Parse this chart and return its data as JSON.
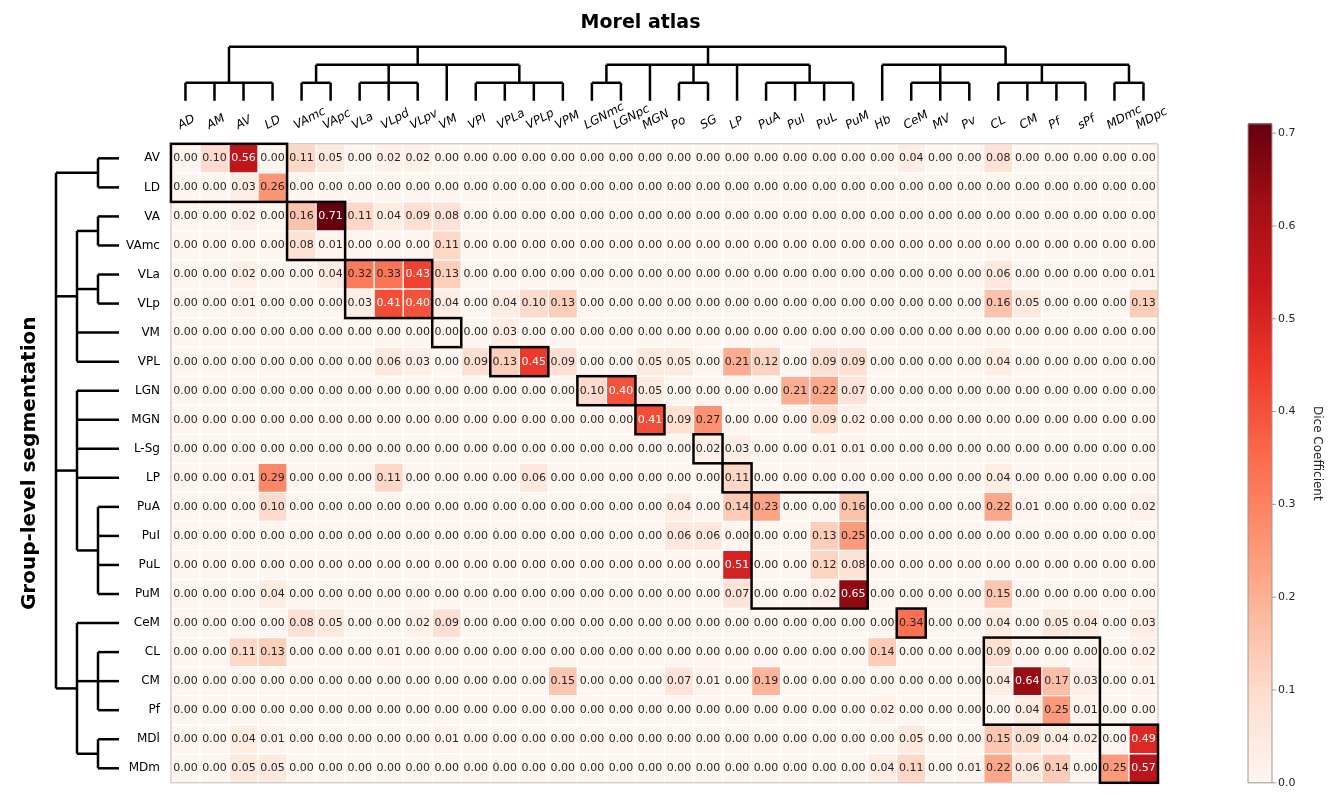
{
  "chart_data": {
    "type": "heatmap",
    "xlabel": "Morel atlas",
    "ylabel": "Group-level segmentation",
    "clabel": "Dice Coefficient",
    "categories": [
      "AD",
      "AM",
      "AV",
      "LD",
      "VAmc",
      "VApc",
      "VLa",
      "VLpd",
      "VLpv",
      "VM",
      "VPI",
      "VPLa",
      "VPLp",
      "VPM",
      "LGNmc",
      "LGNpc",
      "MGN",
      "Po",
      "SG",
      "LP",
      "PuA",
      "PuI",
      "PuL",
      "PuM",
      "Hb",
      "CeM",
      "MV",
      "Pv",
      "CL",
      "CM",
      "Pf",
      "sPf",
      "MDmc",
      "MDpc"
    ],
    "y_categories": [
      "AV",
      "LD",
      "VA",
      "VAmc",
      "VLa",
      "VLp",
      "VM",
      "VPL",
      "LGN",
      "MGN",
      "L-Sg",
      "LP",
      "PuA",
      "PuI",
      "PuL",
      "PuM",
      "CeM",
      "CL",
      "CM",
      "Pf",
      "MDl",
      "MDm"
    ],
    "cells": [
      [
        0,
        0.1,
        0.56,
        0,
        0.11,
        0.05,
        0,
        0.02,
        0.02,
        0,
        0,
        0,
        0,
        0,
        0,
        0,
        0,
        0,
        0,
        0,
        0,
        0,
        0,
        0,
        0,
        0.04,
        0,
        0,
        0.08,
        0,
        0,
        0,
        0,
        0
      ],
      [
        0,
        0,
        0.03,
        0.26,
        0,
        0,
        0,
        0,
        0,
        0,
        0,
        0,
        0,
        0,
        0,
        0,
        0,
        0,
        0,
        0,
        0,
        0,
        0,
        0,
        0,
        0,
        0,
        0,
        0,
        0,
        0,
        0,
        0,
        0
      ],
      [
        0,
        0,
        0.02,
        0,
        0.16,
        0.71,
        0.11,
        0.04,
        0.09,
        0.08,
        0,
        0,
        0,
        0,
        0,
        0,
        0,
        0,
        0,
        0,
        0,
        0,
        0,
        0,
        0,
        0,
        0,
        0,
        0,
        0,
        0,
        0,
        0,
        0
      ],
      [
        0,
        0,
        0,
        0,
        0.08,
        0.01,
        0,
        0,
        0,
        0.11,
        0,
        0,
        0,
        0,
        0,
        0,
        0,
        0,
        0,
        0,
        0,
        0,
        0,
        0,
        0,
        0,
        0,
        0,
        0,
        0,
        0,
        0,
        0,
        0
      ],
      [
        0,
        0,
        0.02,
        0,
        0,
        0.04,
        0.32,
        0.33,
        0.43,
        0.13,
        0,
        0,
        0,
        0,
        0,
        0,
        0,
        0,
        0,
        0,
        0,
        0,
        0,
        0,
        0,
        0,
        0,
        0,
        0.06,
        0,
        0,
        0,
        0,
        0.01
      ],
      [
        0,
        0,
        0.01,
        0,
        0,
        0,
        0.03,
        0.41,
        0.4,
        0.04,
        0,
        0.04,
        0.1,
        0.13,
        0,
        0,
        0,
        0,
        0,
        0,
        0,
        0,
        0,
        0,
        0,
        0,
        0,
        0,
        0.16,
        0.05,
        0,
        0,
        0,
        0.13
      ],
      [
        0,
        0,
        0,
        0,
        0,
        0,
        0,
        0,
        0,
        0,
        0,
        0.03,
        0,
        0,
        0,
        0,
        0,
        0,
        0,
        0,
        0,
        0,
        0,
        0,
        0,
        0,
        0,
        0,
        0,
        0,
        0,
        0,
        0,
        0
      ],
      [
        0,
        0,
        0,
        0,
        0,
        0,
        0,
        0.06,
        0.03,
        0,
        0.09,
        0.13,
        0.45,
        0.09,
        0,
        0,
        0.05,
        0.05,
        0,
        0.21,
        0.12,
        0,
        0.09,
        0.09,
        0,
        0,
        0,
        0,
        0.04,
        0,
        0,
        0,
        0,
        0
      ],
      [
        0,
        0,
        0,
        0,
        0,
        0,
        0,
        0,
        0,
        0,
        0,
        0,
        0,
        0,
        0.1,
        0.4,
        0.05,
        0,
        0,
        0,
        0,
        0.21,
        0.22,
        0.07,
        0,
        0,
        0,
        0,
        0,
        0,
        0,
        0,
        0,
        0
      ],
      [
        0,
        0,
        0,
        0,
        0,
        0,
        0,
        0,
        0,
        0,
        0,
        0,
        0,
        0,
        0,
        0,
        0.41,
        0.09,
        0.27,
        0,
        0,
        0,
        0.09,
        0.02,
        0,
        0,
        0,
        0,
        0,
        0,
        0,
        0,
        0,
        0
      ],
      [
        0,
        0,
        0,
        0,
        0,
        0,
        0,
        0,
        0,
        0,
        0,
        0,
        0,
        0,
        0,
        0,
        0,
        0,
        0.02,
        0.03,
        0,
        0,
        0.01,
        0.01,
        0,
        0,
        0,
        0,
        0,
        0,
        0,
        0,
        0,
        0
      ],
      [
        0,
        0,
        0.01,
        0.29,
        0,
        0,
        0,
        0.11,
        0,
        0,
        0,
        0,
        0.06,
        0,
        0,
        0,
        0,
        0,
        0,
        0.11,
        0,
        0,
        0,
        0,
        0,
        0,
        0,
        0,
        0.04,
        0,
        0,
        0,
        0,
        0
      ],
      [
        0,
        0,
        0,
        0.1,
        0,
        0,
        0,
        0,
        0,
        0,
        0,
        0,
        0,
        0,
        0,
        0,
        0,
        0.04,
        0,
        0.14,
        0.23,
        0,
        0,
        0.16,
        0,
        0,
        0,
        0,
        0.22,
        0.01,
        0,
        0,
        0,
        0.02
      ],
      [
        0,
        0,
        0,
        0,
        0,
        0,
        0,
        0,
        0,
        0,
        0,
        0,
        0,
        0,
        0,
        0,
        0,
        0.06,
        0.06,
        0,
        0,
        0,
        0.13,
        0.25,
        0,
        0,
        0,
        0,
        0,
        0,
        0,
        0,
        0,
        0
      ],
      [
        0,
        0,
        0,
        0,
        0,
        0,
        0,
        0,
        0,
        0,
        0,
        0,
        0,
        0,
        0,
        0,
        0,
        0,
        0,
        0.51,
        0,
        0,
        0.12,
        0.08,
        0,
        0,
        0,
        0,
        0,
        0,
        0,
        0,
        0,
        0
      ],
      [
        0,
        0,
        0,
        0.04,
        0,
        0,
        0,
        0,
        0,
        0,
        0,
        0,
        0,
        0,
        0,
        0,
        0,
        0,
        0,
        0.07,
        0,
        0,
        0.02,
        0.65,
        0,
        0,
        0,
        0,
        0.15,
        0,
        0,
        0,
        0,
        0
      ],
      [
        0,
        0,
        0,
        0,
        0.08,
        0.05,
        0,
        0,
        0.02,
        0.09,
        0,
        0,
        0,
        0,
        0,
        0,
        0,
        0,
        0,
        0,
        0,
        0,
        0,
        0,
        0,
        0.34,
        0,
        0,
        0.04,
        0,
        0.05,
        0.04,
        0,
        0.03
      ],
      [
        0,
        0,
        0.11,
        0.13,
        0,
        0,
        0,
        0.01,
        0,
        0,
        0,
        0,
        0,
        0,
        0,
        0,
        0,
        0,
        0,
        0,
        0,
        0,
        0,
        0,
        0.14,
        0,
        0,
        0,
        0.09,
        0,
        0,
        0,
        0,
        0.02
      ],
      [
        0,
        0,
        0,
        0,
        0,
        0,
        0,
        0,
        0,
        0,
        0,
        0,
        0,
        0.15,
        0,
        0,
        0,
        0.07,
        0.01,
        0,
        0.19,
        0,
        0,
        0,
        0,
        0,
        0,
        0,
        0.04,
        0.64,
        0.17,
        0.03,
        0,
        0.01
      ],
      [
        0,
        0,
        0,
        0,
        0,
        0,
        0,
        0,
        0,
        0,
        0,
        0,
        0,
        0,
        0,
        0,
        0,
        0,
        0,
        0,
        0,
        0,
        0,
        0,
        0.02,
        0,
        0,
        0,
        0,
        0.04,
        0.25,
        0.01,
        0,
        0
      ],
      [
        0,
        0,
        0.04,
        0.01,
        0,
        0,
        0,
        0,
        0,
        0.01,
        0,
        0,
        0,
        0,
        0,
        0,
        0,
        0,
        0,
        0,
        0,
        0,
        0,
        0,
        0,
        0.05,
        0,
        0,
        0.15,
        0.09,
        0.04,
        0.02,
        0,
        0.49
      ],
      [
        0,
        0,
        0.05,
        0.05,
        0,
        0,
        0,
        0,
        0,
        0,
        0,
        0,
        0,
        0,
        0,
        0,
        0,
        0,
        0,
        0,
        0,
        0,
        0,
        0,
        0.04,
        0.11,
        0,
        0.01,
        0.22,
        0.06,
        0.14,
        0,
        0.25,
        0.57
      ]
    ],
    "cell_labels": [
      [
        "0.00",
        "0.10",
        "0.56",
        "0.00",
        "0.11",
        "0.05",
        "0.00",
        "0.02",
        "0.02",
        "0.00",
        "0.00",
        "0.00",
        "0.00",
        "0.00",
        "0.00",
        "0.00",
        "0.00",
        "0.00",
        "0.00",
        "0.00",
        "0.00",
        "0.00",
        "0.00",
        "0.00",
        "0.00",
        "0.04",
        "0.00",
        "0.00",
        "0.08",
        "0.00",
        "0.00",
        "0.00",
        "0.00",
        "0.00"
      ],
      [
        "0.00",
        "0.00",
        "0.03",
        "0.26",
        "0.00",
        "0.00",
        "0.00",
        "0.00",
        "0.00",
        "0.00",
        "0.00",
        "0.00",
        "0.00",
        "0.00",
        "0.00",
        "0.00",
        "0.00",
        "0.00",
        "0.00",
        "0.00",
        "0.00",
        "0.00",
        "0.00",
        "0.00",
        "0.00",
        "0.00",
        "0.00",
        "0.00",
        "0.00",
        "0.00",
        "0.00",
        "0.00",
        "0.00",
        "0.00"
      ],
      [
        "0.00",
        "0.00",
        "0.02",
        "0.00",
        "0.16",
        "0.71",
        "0.11",
        "0.04",
        "0.09",
        "0.08",
        "0.00",
        "0.00",
        "0.00",
        "0.00",
        "0.00",
        "0.00",
        "0.00",
        "0.00",
        "0.00",
        "0.00",
        "0.00",
        "0.00",
        "0.00",
        "0.00",
        "0.00",
        "0.00",
        "0.00",
        "0.00",
        "0.00",
        "0.00",
        "0.00",
        "0.00",
        "0.00",
        "0.00"
      ],
      [
        "0.00",
        "0.00",
        "0.00",
        "0.00",
        "0.08",
        "0.01",
        "0.00",
        "0.00",
        "0.00",
        "0.11",
        "0.00",
        "0.00",
        "0.00",
        "0.00",
        "0.00",
        "0.00",
        "0.00",
        "0.00",
        "0.00",
        "0.00",
        "0.00",
        "0.00",
        "0.00",
        "0.00",
        "0.00",
        "0.00",
        "0.00",
        "0.00",
        "0.00",
        "0.00",
        "0.00",
        "0.00",
        "0.00",
        "0.00"
      ],
      [
        "0.00",
        "0.00",
        "0.02",
        "0.00",
        "0.00",
        "0.04",
        "0.32",
        "0.33",
        "0.43",
        "0.13",
        "0.00",
        "0.00",
        "0.00",
        "0.00",
        "0.00",
        "0.00",
        "0.00",
        "0.00",
        "0.00",
        "0.00",
        "0.00",
        "0.00",
        "0.00",
        "0.00",
        "0.00",
        "0.00",
        "0.00",
        "0.00",
        "0.06",
        "0.00",
        "0.00",
        "0.00",
        "0.00",
        "0.01"
      ],
      [
        "0.00",
        "0.00",
        "0.01",
        "0.00",
        "0.00",
        "0.00",
        "0.03",
        "0.41",
        "0.40",
        "0.04",
        "0.00",
        "0.04",
        "0.10",
        "0.13",
        "0.00",
        "0.00",
        "0.00",
        "0.00",
        "0.00",
        "0.00",
        "0.00",
        "0.00",
        "0.00",
        "0.00",
        "0.00",
        "0.00",
        "0.00",
        "0.00",
        "0.16",
        "0.05",
        "0.00",
        "0.00",
        "0.00",
        "0.13"
      ],
      [
        "0.00",
        "0.00",
        "0.00",
        "0.00",
        "0.00",
        "0.00",
        "0.00",
        "0.00",
        "0.00",
        "0.00",
        "0.00",
        "0.03",
        "0.00",
        "0.00",
        "0.00",
        "0.00",
        "0.00",
        "0.00",
        "0.00",
        "0.00",
        "0.00",
        "0.00",
        "0.00",
        "0.00",
        "0.00",
        "0.00",
        "0.00",
        "0.00",
        "0.00",
        "0.00",
        "0.00",
        "0.00",
        "0.00",
        "0.00"
      ],
      [
        "0.00",
        "0.00",
        "0.00",
        "0.00",
        "0.00",
        "0.00",
        "0.00",
        "0.06",
        "0.03",
        "0.00",
        "0.09",
        "0.13",
        "0.45",
        "0.09",
        "0.00",
        "0.00",
        "0.05",
        "0.05",
        "0.00",
        "0.21",
        "0.12",
        "0.00",
        "0.09",
        "0.09",
        "0.00",
        "0.00",
        "0.00",
        "0.00",
        "0.04",
        "0.00",
        "0.00",
        "0.00",
        "0.00",
        "0.00"
      ],
      [
        "0.00",
        "0.00",
        "0.00",
        "0.00",
        "0.00",
        "0.00",
        "0.00",
        "0.00",
        "0.00",
        "0.00",
        "0.00",
        "0.00",
        "0.00",
        "0.00",
        "0.10",
        "0.40",
        "0.05",
        "0.00",
        "0.00",
        "0.00",
        "0.00",
        "0.21",
        "0.22",
        "0.07",
        "0.00",
        "0.00",
        "0.00",
        "0.00",
        "0.00",
        "0.00",
        "0.00",
        "0.00",
        "0.00",
        "0.00"
      ],
      [
        "0.00",
        "0.00",
        "0.00",
        "0.00",
        "0.00",
        "0.00",
        "0.00",
        "0.00",
        "0.00",
        "0.00",
        "0.00",
        "0.00",
        "0.00",
        "0.00",
        "0.00",
        "0.00",
        "0.41",
        "0.09",
        "0.27",
        "0.00",
        "0.00",
        "0.00",
        "0.09",
        "0.02",
        "0.00",
        "0.00",
        "0.00",
        "0.00",
        "0.00",
        "0.00",
        "0.00",
        "0.00",
        "0.00",
        "0.00"
      ],
      [
        "0.00",
        "0.00",
        "0.00",
        "0.00",
        "0.00",
        "0.00",
        "0.00",
        "0.00",
        "0.00",
        "0.00",
        "0.00",
        "0.00",
        "0.00",
        "0.00",
        "0.00",
        "0.00",
        "0.00",
        "0.00",
        "0.02",
        "0.03",
        "0.00",
        "0.00",
        "0.01",
        "0.01",
        "0.00",
        "0.00",
        "0.00",
        "0.00",
        "0.00",
        "0.00",
        "0.00",
        "0.00",
        "0.00",
        "0.00"
      ],
      [
        "0.00",
        "0.00",
        "0.01",
        "0.29",
        "0.00",
        "0.00",
        "0.00",
        "0.11",
        "0.00",
        "0.00",
        "0.00",
        "0.00",
        "0.06",
        "0.00",
        "0.00",
        "0.00",
        "0.00",
        "0.00",
        "0.00",
        "0.11",
        "0.00",
        "0.00",
        "0.00",
        "0.00",
        "0.00",
        "0.00",
        "0.00",
        "0.00",
        "0.04",
        "0.00",
        "0.00",
        "0.00",
        "0.00",
        "0.00"
      ],
      [
        "0.00",
        "0.00",
        "0.00",
        "0.10",
        "0.00",
        "0.00",
        "0.00",
        "0.00",
        "0.00",
        "0.00",
        "0.00",
        "0.00",
        "0.00",
        "0.00",
        "0.00",
        "0.00",
        "0.00",
        "0.04",
        "0.00",
        "0.14",
        "0.23",
        "0.00",
        "0.00",
        "0.16",
        "0.00",
        "0.00",
        "0.00",
        "0.00",
        "0.22",
        "0.01",
        "0.00",
        "0.00",
        "0.00",
        "0.02"
      ],
      [
        "0.00",
        "0.00",
        "0.00",
        "0.00",
        "0.00",
        "0.00",
        "0.00",
        "0.00",
        "0.00",
        "0.00",
        "0.00",
        "0.00",
        "0.00",
        "0.00",
        "0.00",
        "0.00",
        "0.00",
        "0.06",
        "0.06",
        "0.00",
        "0.00",
        "0.00",
        "0.13",
        "0.25",
        "0.00",
        "0.00",
        "0.00",
        "0.00",
        "0.00",
        "0.00",
        "0.00",
        "0.00",
        "0.00",
        "0.00"
      ],
      [
        "0.00",
        "0.00",
        "0.00",
        "0.00",
        "0.00",
        "0.00",
        "0.00",
        "0.00",
        "0.00",
        "0.00",
        "0.00",
        "0.00",
        "0.00",
        "0.00",
        "0.00",
        "0.00",
        "0.00",
        "0.00",
        "0.00",
        "0.51",
        "0.00",
        "0.00",
        "0.12",
        "0.08",
        "0.00",
        "0.00",
        "0.00",
        "0.00",
        "0.00",
        "0.00",
        "0.00",
        "0.00",
        "0.00",
        "0.00"
      ],
      [
        "0.00",
        "0.00",
        "0.00",
        "0.04",
        "0.00",
        "0.00",
        "0.00",
        "0.00",
        "0.00",
        "0.00",
        "0.00",
        "0.00",
        "0.00",
        "0.00",
        "0.00",
        "0.00",
        "0.00",
        "0.00",
        "0.00",
        "0.07",
        "0.00",
        "0.00",
        "0.02",
        "0.65",
        "0.00",
        "0.00",
        "0.00",
        "0.00",
        "0.15",
        "0.00",
        "0.00",
        "0.00",
        "0.00",
        "0.00"
      ],
      [
        "0.00",
        "0.00",
        "0.00",
        "0.00",
        "0.08",
        "0.05",
        "0.00",
        "0.00",
        "0.02",
        "0.09",
        "0.00",
        "0.00",
        "0.00",
        "0.00",
        "0.00",
        "0.00",
        "0.00",
        "0.00",
        "0.00",
        "0.00",
        "0.00",
        "0.00",
        "0.00",
        "0.00",
        "0.00",
        "0.34",
        "0.00",
        "0.00",
        "0.04",
        "0.00",
        "0.05",
        "0.04",
        "0.00",
        "0.03"
      ],
      [
        "0.00",
        "0.00",
        "0.11",
        "0.13",
        "0.00",
        "0.00",
        "0.00",
        "0.01",
        "0.00",
        "0.00",
        "0.00",
        "0.00",
        "0.00",
        "0.00",
        "0.00",
        "0.00",
        "0.00",
        "0.00",
        "0.00",
        "0.00",
        "0.00",
        "0.00",
        "0.00",
        "0.00",
        "0.14",
        "0.00",
        "0.00",
        "0.00",
        "0.09",
        "0.00",
        "0.00",
        "0.00",
        "0.00",
        "0.02"
      ],
      [
        "0.00",
        "0.00",
        "0.00",
        "0.00",
        "0.00",
        "0.00",
        "0.00",
        "0.00",
        "0.00",
        "0.00",
        "0.00",
        "0.00",
        "0.00",
        "0.15",
        "0.00",
        "0.00",
        "0.00",
        "0.07",
        "0.01",
        "0.00",
        "0.19",
        "0.00",
        "0.00",
        "0.00",
        "0.00",
        "0.00",
        "0.00",
        "0.00",
        "0.04",
        "0.64",
        "0.17",
        "0.03",
        "0.00",
        "0.01"
      ],
      [
        "0.00",
        "0.00",
        "0.00",
        "0.00",
        "0.00",
        "0.00",
        "0.00",
        "0.00",
        "0.00",
        "0.00",
        "0.00",
        "0.00",
        "0.00",
        "0.00",
        "0.00",
        "0.00",
        "0.00",
        "0.00",
        "0.00",
        "0.00",
        "0.00",
        "0.00",
        "0.00",
        "0.00",
        "0.02",
        "0.00",
        "0.00",
        "0.00",
        "0.00",
        "0.04",
        "0.25",
        "0.01",
        "0.00",
        "0.00"
      ],
      [
        "0.00",
        "0.00",
        "0.04",
        "0.01",
        "0.00",
        "0.00",
        "0.00",
        "0.00",
        "0.00",
        "0.01",
        "0.00",
        "0.00",
        "0.00",
        "0.00",
        "0.00",
        "0.00",
        "0.00",
        "0.00",
        "0.00",
        "0.00",
        "0.00",
        "0.00",
        "0.00",
        "0.00",
        "0.00",
        "0.05",
        "0.00",
        "0.00",
        "0.15",
        "0.09",
        "0.04",
        "0.02",
        "0.00",
        "0.49"
      ],
      [
        "0.00",
        "0.00",
        "0.05",
        "0.05",
        "0.00",
        "0.00",
        "0.00",
        "0.00",
        "0.00",
        "0.00",
        "0.00",
        "0.00",
        "0.00",
        "0.00",
        "0.00",
        "0.00",
        "0.00",
        "0.00",
        "0.00",
        "0.00",
        "0.00",
        "0.00",
        "0.00",
        "0.00",
        "0.04",
        "0.11",
        "0.00",
        "0.01",
        "0.22",
        "0.06",
        "0.14",
        "0.00",
        "0.25",
        "0.57"
      ]
    ],
    "clim": [
      0,
      0.71
    ],
    "cticks": [
      {
        "value": 0,
        "label": "0.0"
      },
      0.1,
      0.2,
      0.3,
      0.4,
      0.5,
      0.6,
      0.7
    ]
  }
}
